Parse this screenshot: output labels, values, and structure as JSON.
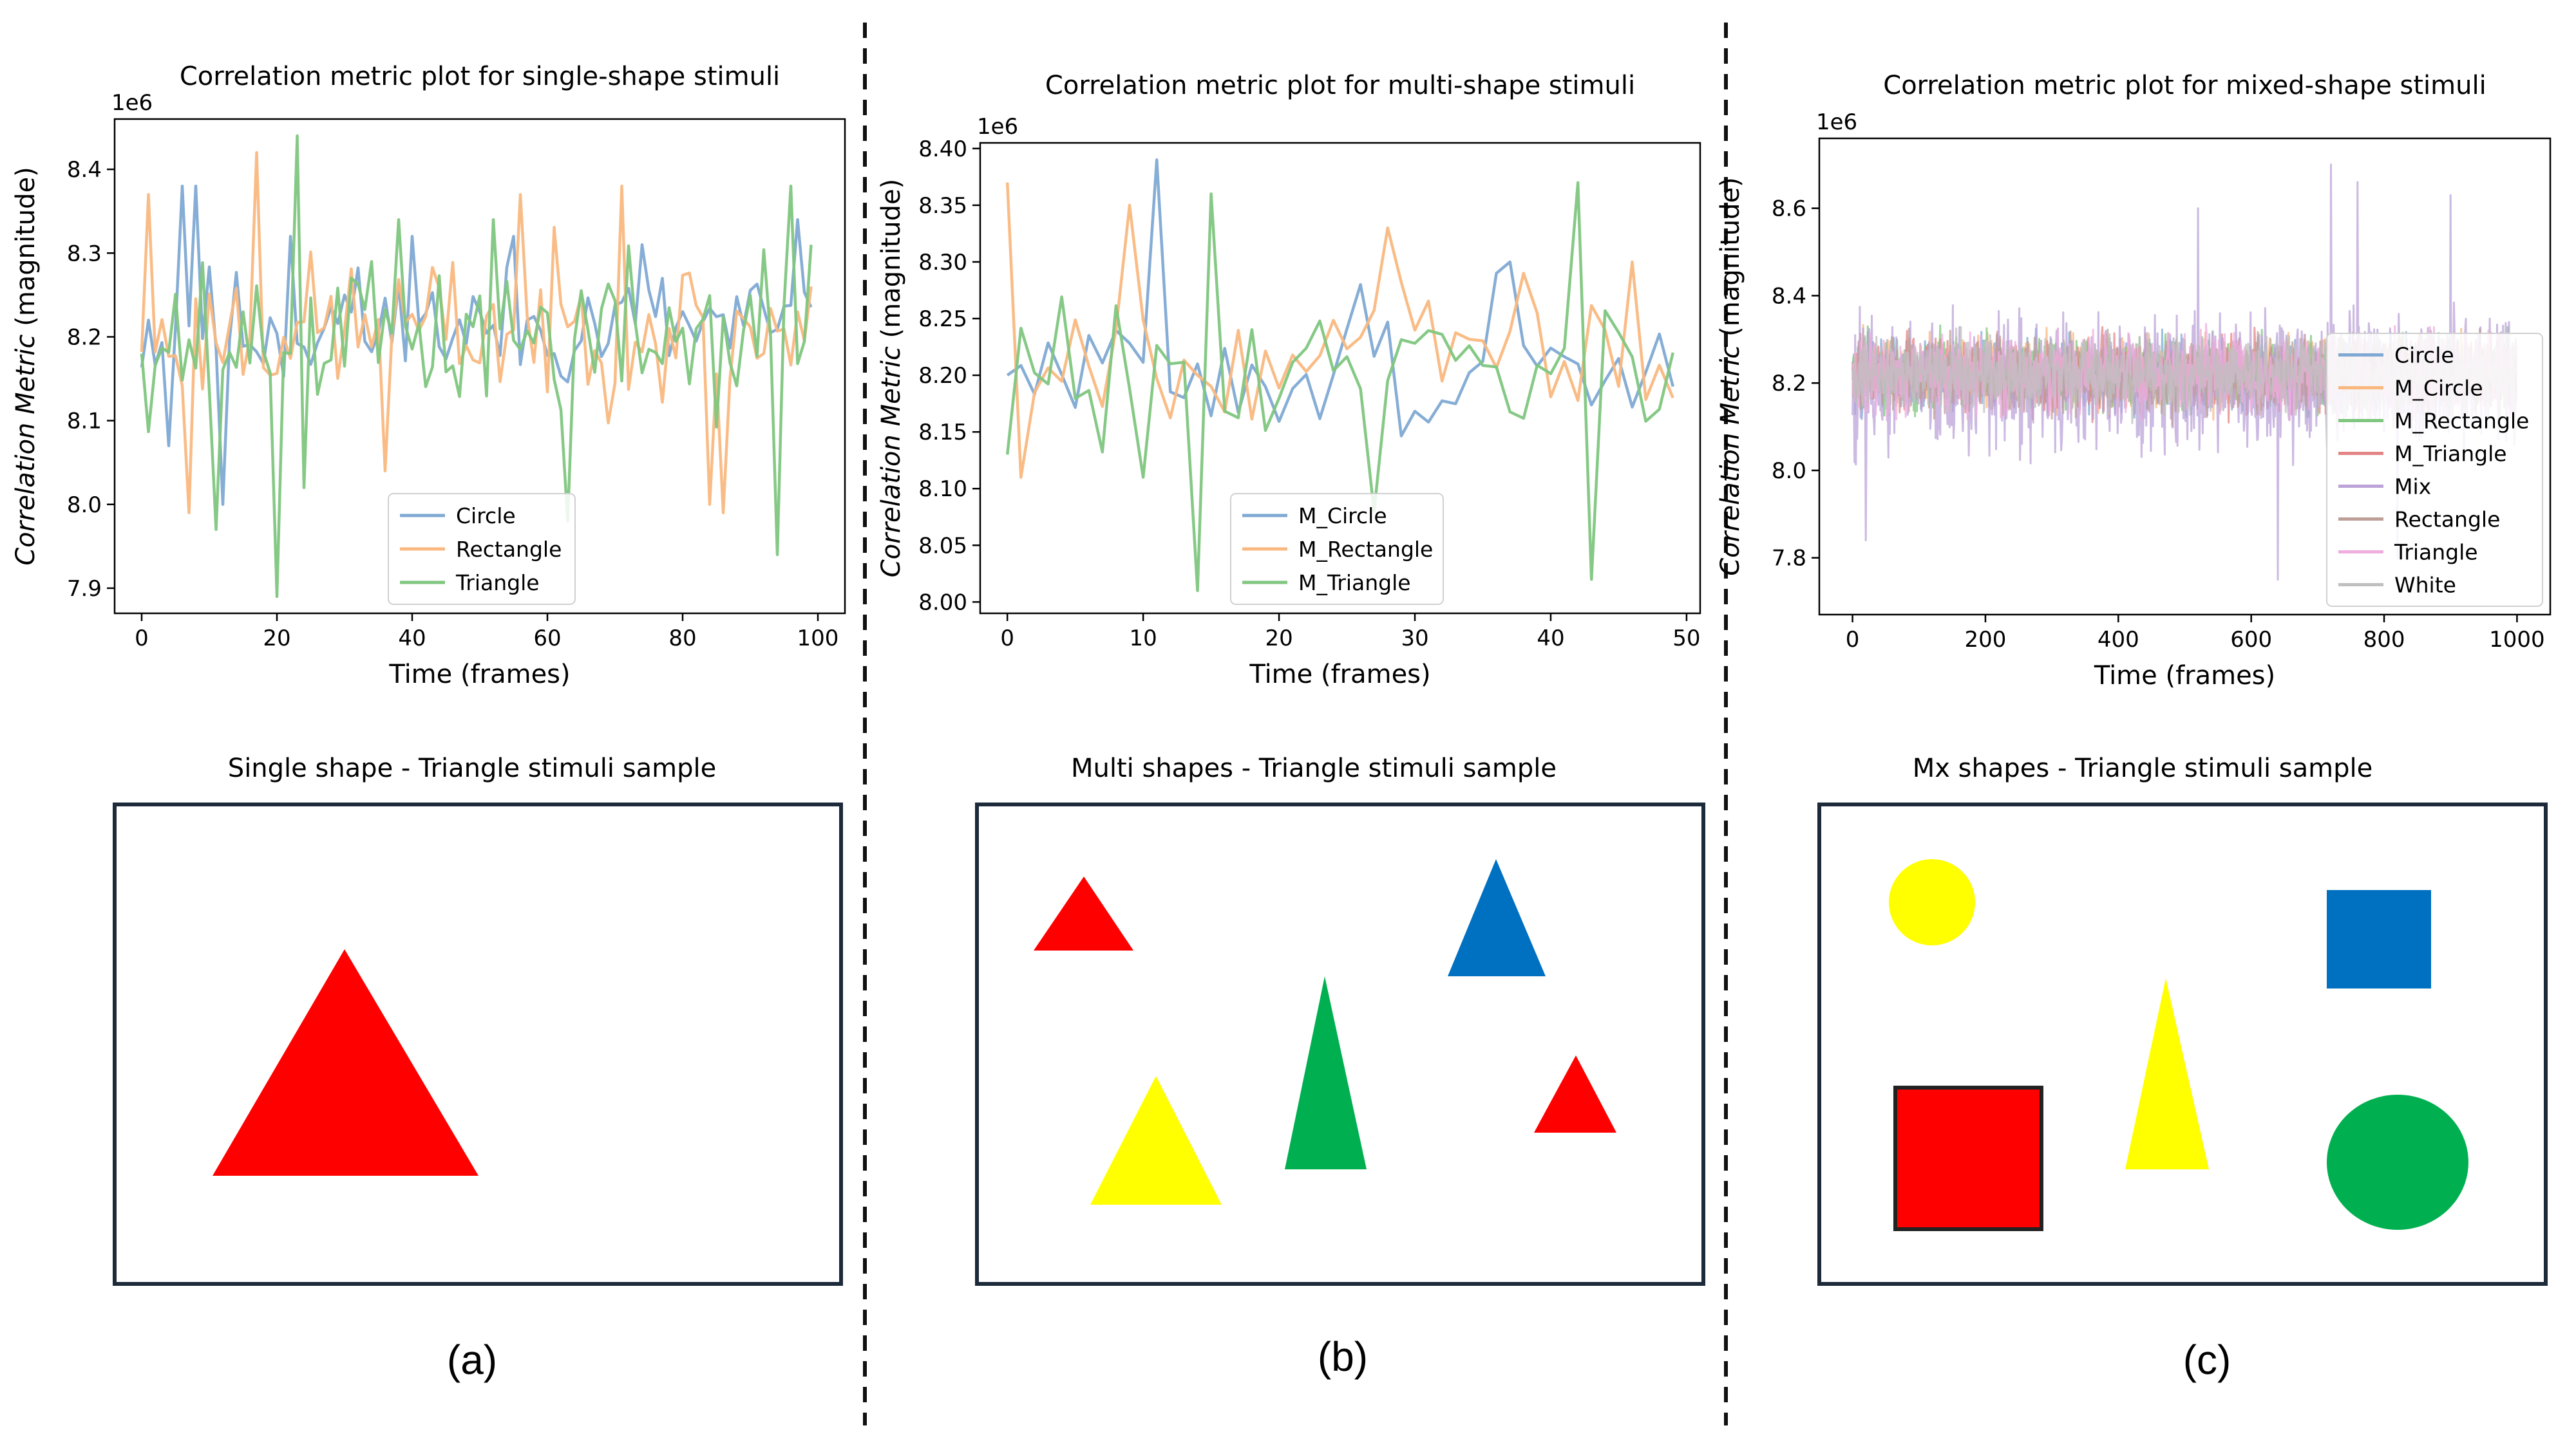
{
  "panels": [
    {
      "id": "a",
      "label": "(a)",
      "stimuli_title": "Single shape - Triangle stimuli sample",
      "shapes": [
        {
          "kind": "triangle",
          "name": "red-triangle",
          "color": "#ff0000"
        }
      ]
    },
    {
      "id": "b",
      "label": "(b)",
      "stimuli_title": "Multi shapes - Triangle stimuli sample",
      "shapes": [
        {
          "kind": "triangle",
          "name": "small-red-triangle",
          "color": "#ff0000"
        },
        {
          "kind": "triangle",
          "name": "blue-triangle",
          "color": "#0070c0"
        },
        {
          "kind": "triangle",
          "name": "green-triangle",
          "color": "#00b050"
        },
        {
          "kind": "triangle",
          "name": "yellow-triangle",
          "color": "#ffff00"
        },
        {
          "kind": "triangle",
          "name": "right-red-triangle",
          "color": "#ff0000"
        }
      ]
    },
    {
      "id": "c",
      "label": "(c)",
      "stimuli_title": "Mx shapes - Triangle stimuli sample",
      "shapes": [
        {
          "kind": "circle",
          "name": "yellow-circle",
          "color": "#ffff00"
        },
        {
          "kind": "square",
          "name": "blue-square",
          "color": "#0070c0"
        },
        {
          "kind": "square",
          "name": "red-square",
          "color": "#ff0000"
        },
        {
          "kind": "triangle",
          "name": "yellow-triangle",
          "color": "#ffff00"
        },
        {
          "kind": "circle",
          "name": "green-circle",
          "color": "#00b050"
        }
      ]
    }
  ],
  "chart_data": [
    {
      "type": "line",
      "title": "Correlation metric plot for single-shape stimuli",
      "xlabel": "Time (frames)",
      "ylabel_italic": "Correlation Metric",
      "ylabel_rest": " (magnitude)",
      "offset_label": "1e6",
      "xlim": [
        -4,
        104
      ],
      "ylim": [
        7.87,
        8.46
      ],
      "xticks": [
        0,
        20,
        40,
        60,
        80,
        100
      ],
      "yticks": [
        7.9,
        8.0,
        8.1,
        8.2,
        8.3,
        8.4
      ],
      "ytick_labels": [
        "7.9",
        "8.0",
        "8.1",
        "8.2",
        "8.3",
        "8.4"
      ],
      "legend_loc": "lower-center",
      "series": [
        {
          "name": "Circle",
          "color": "#7fa9d3",
          "n": 100,
          "base": 8.21,
          "amp": 0.11,
          "seed": 11,
          "pins": [
            [
              4,
              8.07
            ],
            [
              6,
              8.38
            ],
            [
              8,
              8.38
            ],
            [
              12,
              8.0
            ],
            [
              22,
              8.32
            ],
            [
              30,
              8.25
            ],
            [
              40,
              8.32
            ],
            [
              55,
              8.32
            ],
            [
              74,
              8.31
            ],
            [
              97,
              8.34
            ]
          ]
        },
        {
          "name": "Rectangle",
          "color": "#f9b880",
          "n": 100,
          "base": 8.21,
          "amp": 0.13,
          "seed": 23,
          "pins": [
            [
              1,
              8.37
            ],
            [
              7,
              7.99
            ],
            [
              17,
              8.42
            ],
            [
              36,
              8.04
            ],
            [
              56,
              8.37
            ],
            [
              71,
              8.38
            ],
            [
              84,
              8.0
            ],
            [
              86,
              7.99
            ],
            [
              99,
              8.26
            ]
          ]
        },
        {
          "name": "Triangle",
          "color": "#7fc67f",
          "n": 100,
          "base": 8.2,
          "amp": 0.15,
          "seed": 37,
          "pins": [
            [
              0,
              8.18
            ],
            [
              11,
              7.97
            ],
            [
              20,
              7.89
            ],
            [
              23,
              8.44
            ],
            [
              24,
              8.02
            ],
            [
              31,
              8.27
            ],
            [
              38,
              8.34
            ],
            [
              52,
              8.34
            ],
            [
              63,
              7.98
            ],
            [
              94,
              7.94
            ],
            [
              96,
              8.38
            ],
            [
              99,
              8.31
            ]
          ]
        }
      ]
    },
    {
      "type": "line",
      "title": "Correlation metric plot for multi-shape stimuli",
      "xlabel": "Time (frames)",
      "ylabel_italic": "Correlation Metric",
      "ylabel_rest": " (magnitude)",
      "offset_label": "1e6",
      "xlim": [
        -2,
        51
      ],
      "ylim": [
        7.99,
        8.405
      ],
      "xticks": [
        0,
        10,
        20,
        30,
        40,
        50
      ],
      "yticks": [
        8.0,
        8.05,
        8.1,
        8.15,
        8.2,
        8.25,
        8.3,
        8.35,
        8.4
      ],
      "ytick_labels": [
        "8.00",
        "8.05",
        "8.10",
        "8.15",
        "8.20",
        "8.25",
        "8.30",
        "8.35",
        "8.40"
      ],
      "legend_loc": "lower-center",
      "series": [
        {
          "name": "M_Circle",
          "color": "#7fa9d3",
          "n": 50,
          "base": 8.2,
          "amp": 0.07,
          "seed": 51,
          "pins": [
            [
              0,
              8.2
            ],
            [
              11,
              8.39
            ],
            [
              14,
              8.21
            ],
            [
              26,
              8.28
            ],
            [
              36,
              8.29
            ],
            [
              37,
              8.3
            ],
            [
              42,
              8.21
            ],
            [
              49,
              8.19
            ]
          ]
        },
        {
          "name": "M_Rectangle",
          "color": "#f9b880",
          "n": 50,
          "base": 8.22,
          "amp": 0.08,
          "seed": 67,
          "pins": [
            [
              0,
              8.37
            ],
            [
              1,
              8.11
            ],
            [
              9,
              8.35
            ],
            [
              14,
              8.2
            ],
            [
              28,
              8.33
            ],
            [
              38,
              8.29
            ],
            [
              46,
              8.3
            ],
            [
              49,
              8.18
            ]
          ]
        },
        {
          "name": "M_Triangle",
          "color": "#7fc67f",
          "n": 50,
          "base": 8.2,
          "amp": 0.1,
          "seed": 83,
          "pins": [
            [
              0,
              8.13
            ],
            [
              10,
              8.11
            ],
            [
              14,
              8.01
            ],
            [
              15,
              8.36
            ],
            [
              27,
              8.08
            ],
            [
              42,
              8.37
            ],
            [
              43,
              8.02
            ],
            [
              48,
              8.17
            ],
            [
              49,
              8.22
            ]
          ]
        }
      ]
    },
    {
      "type": "line",
      "title": "Correlation metric plot for mixed-shape stimuli",
      "xlabel": "Time (frames)",
      "ylabel_italic": "Correlation Metric",
      "ylabel_rest": " (magnitude)",
      "offset_label": "1e6",
      "xlim": [
        -50,
        1050
      ],
      "ylim": [
        7.67,
        8.76
      ],
      "xticks": [
        0,
        200,
        400,
        600,
        800,
        1000
      ],
      "yticks": [
        7.8,
        8.0,
        8.2,
        8.4,
        8.6
      ],
      "ytick_labels": [
        "7.8",
        "8.0",
        "8.2",
        "8.4",
        "8.6"
      ],
      "legend_loc": "right",
      "series": [
        {
          "name": "Circle",
          "color": "#7fa9d3",
          "n": 1000,
          "base": 8.22,
          "amp": 0.12,
          "seed": 101,
          "pins": []
        },
        {
          "name": "M_Circle",
          "color": "#f9b880",
          "n": 1000,
          "base": 8.22,
          "amp": 0.12,
          "seed": 103,
          "pins": []
        },
        {
          "name": "M_Rectangle",
          "color": "#7fc67f",
          "n": 1000,
          "base": 8.22,
          "amp": 0.12,
          "seed": 107,
          "pins": []
        },
        {
          "name": "M_Triangle",
          "color": "#e38585",
          "n": 1000,
          "base": 8.22,
          "amp": 0.12,
          "seed": 109,
          "pins": []
        },
        {
          "name": "Mix",
          "color": "#bba3d8",
          "n": 1000,
          "base": 8.2,
          "amp": 0.22,
          "seed": 113,
          "pins": [
            [
              20,
              7.84
            ],
            [
              520,
              8.6
            ],
            [
              640,
              7.75
            ],
            [
              720,
              8.7
            ],
            [
              760,
              8.66
            ],
            [
              820,
              7.8
            ],
            [
              900,
              8.63
            ]
          ]
        },
        {
          "name": "Rectangle",
          "color": "#bd9f98",
          "n": 1000,
          "base": 8.22,
          "amp": 0.12,
          "seed": 127,
          "pins": []
        },
        {
          "name": "Triangle",
          "color": "#f0aede",
          "n": 1000,
          "base": 8.22,
          "amp": 0.13,
          "seed": 131,
          "pins": []
        },
        {
          "name": "White",
          "color": "#bfbfbf",
          "n": 1000,
          "base": 8.22,
          "amp": 0.12,
          "seed": 137,
          "pins": []
        }
      ]
    }
  ]
}
